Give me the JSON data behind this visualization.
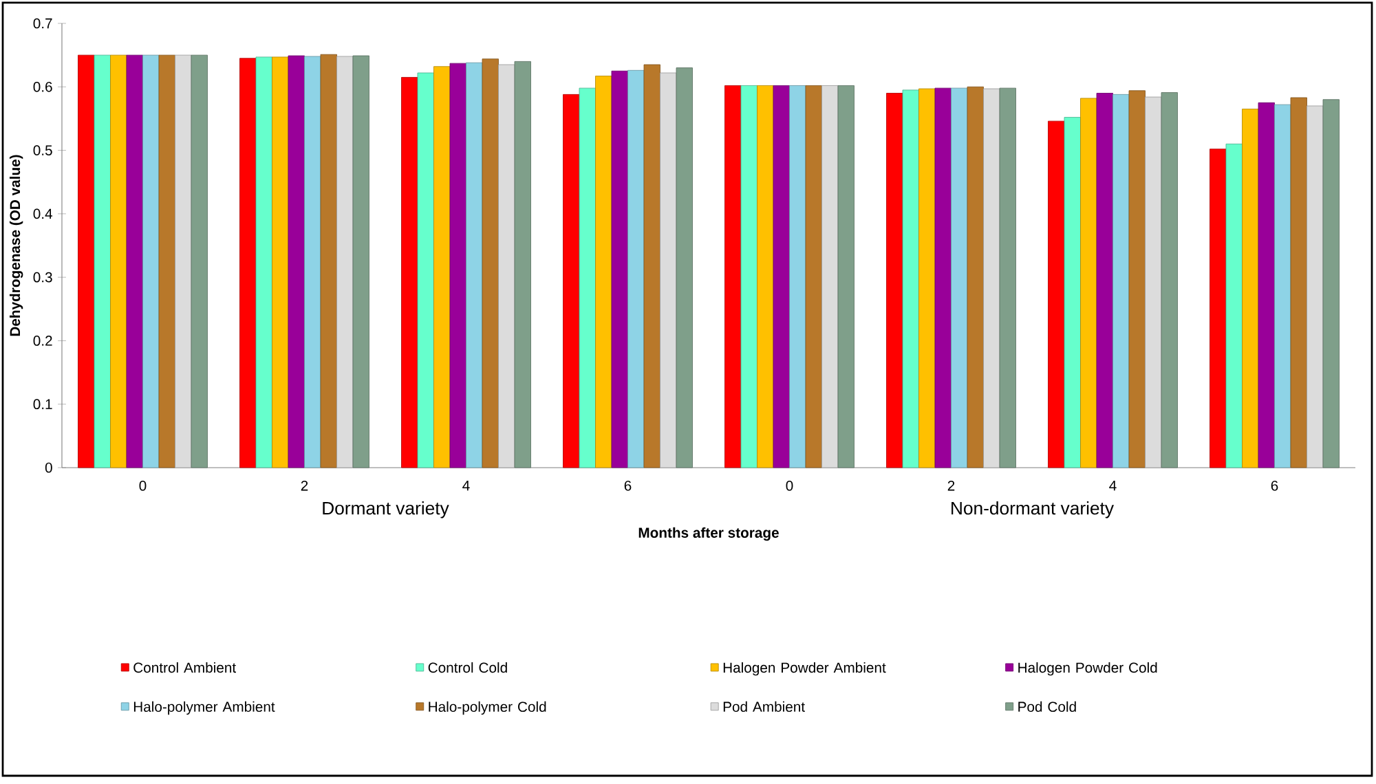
{
  "chart_data": {
    "type": "bar",
    "xlabel": "Months after storage",
    "ylabel": "Dehydrogenase (OD value)",
    "categories": [
      "0",
      "2",
      "4",
      "6",
      "0",
      "2",
      "4",
      "6"
    ],
    "annotations": [
      "Dormant variety",
      "Non-dormant variety"
    ],
    "ylim": [
      0,
      0.7
    ],
    "yticks": [
      0,
      0.1,
      0.2,
      0.3,
      0.4,
      0.5,
      0.6,
      0.7
    ],
    "legend": "bottom",
    "grid": false,
    "series": [
      {
        "name": "Control Ambient",
        "color": "#ff0000",
        "values": [
          0.65,
          0.645,
          0.615,
          0.588,
          0.602,
          0.59,
          0.546,
          0.502
        ]
      },
      {
        "name": "Control Cold",
        "color": "#66ffcc",
        "values": [
          0.65,
          0.647,
          0.622,
          0.598,
          0.602,
          0.595,
          0.552,
          0.51
        ]
      },
      {
        "name": "Halogen Powder Ambient",
        "color": "#ffc000",
        "values": [
          0.65,
          0.647,
          0.632,
          0.617,
          0.602,
          0.597,
          0.582,
          0.565
        ]
      },
      {
        "name": "Halogen Powder Cold",
        "color": "#990099",
        "values": [
          0.65,
          0.649,
          0.637,
          0.625,
          0.602,
          0.598,
          0.59,
          0.575
        ]
      },
      {
        "name": "Halo-polymer Ambient",
        "color": "#8ed3e6",
        "values": [
          0.65,
          0.648,
          0.638,
          0.626,
          0.602,
          0.598,
          0.588,
          0.572
        ]
      },
      {
        "name": "Halo-polymer Cold",
        "color": "#b8782a",
        "values": [
          0.65,
          0.651,
          0.644,
          0.635,
          0.602,
          0.6,
          0.594,
          0.583
        ]
      },
      {
        "name": "Pod Ambient",
        "color": "#dcdcdc",
        "values": [
          0.65,
          0.648,
          0.635,
          0.622,
          0.602,
          0.597,
          0.584,
          0.57
        ]
      },
      {
        "name": "Pod Cold",
        "color": "#7f9f8a",
        "values": [
          0.65,
          0.649,
          0.64,
          0.63,
          0.602,
          0.598,
          0.591,
          0.58
        ]
      }
    ]
  }
}
